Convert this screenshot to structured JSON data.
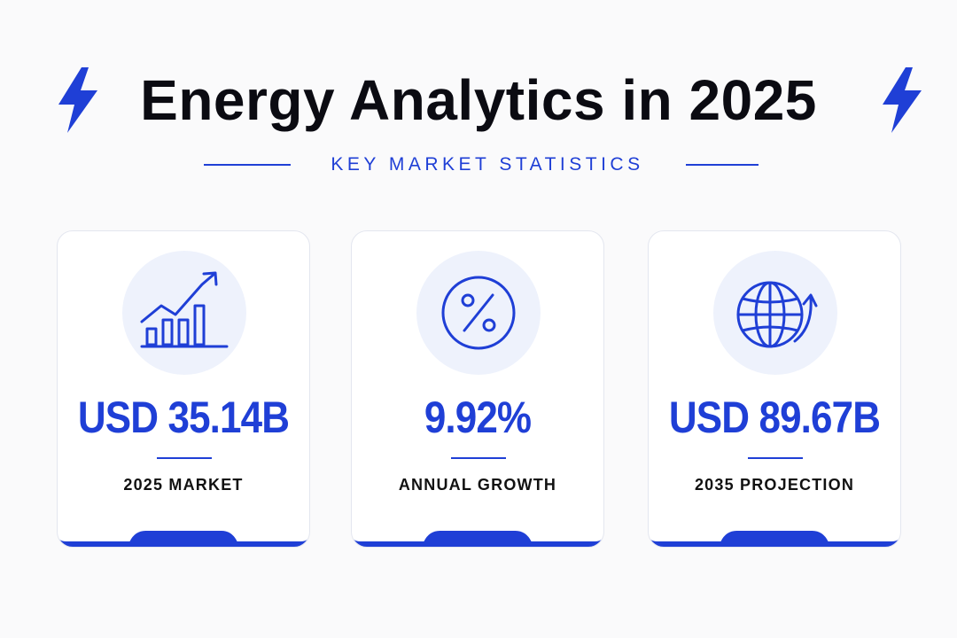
{
  "header": {
    "title": "Energy Analytics in 2025",
    "subtitle": "KEY MARKET STATISTICS",
    "icons": [
      "lightning-bolt-icon",
      "lightning-bolt-icon"
    ]
  },
  "colors": {
    "accent": "#1f3fd6",
    "icon_bg": "#eef2fc",
    "text": "#0b0b12",
    "background": "#fafafb"
  },
  "cards": [
    {
      "icon": "trending-bar-chart-icon",
      "value": "USD 35.14B",
      "label": "2025 MARKET"
    },
    {
      "icon": "percent-icon",
      "value": "9.92%",
      "label": "ANNUAL GROWTH"
    },
    {
      "icon": "globe-growth-icon",
      "value": "USD 89.67B",
      "label": "2035 PROJECTION"
    }
  ]
}
